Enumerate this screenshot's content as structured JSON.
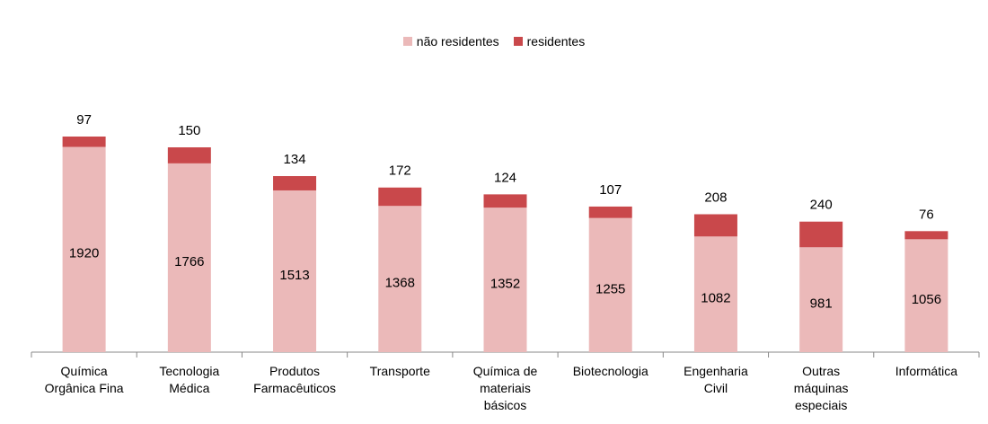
{
  "chart_data": {
    "type": "stacked_bar",
    "categories": [
      "Química Orgânica Fina",
      "Tecnologia Médica",
      "Produtos Farmacêuticos",
      "Transporte",
      "Química de materiais básicos",
      "Biotecnologia",
      "Engenharia Civil",
      "Outras máquinas especiais",
      "Informática"
    ],
    "series": [
      {
        "name": "não residentes",
        "color": "#ebb9b9",
        "values": [
          1920,
          1766,
          1513,
          1368,
          1352,
          1255,
          1082,
          981,
          1056
        ]
      },
      {
        "name": "residentes",
        "color": "#c9484b",
        "values": [
          97,
          150,
          134,
          172,
          124,
          107,
          208,
          240,
          76
        ]
      }
    ],
    "legend": "top"
  }
}
